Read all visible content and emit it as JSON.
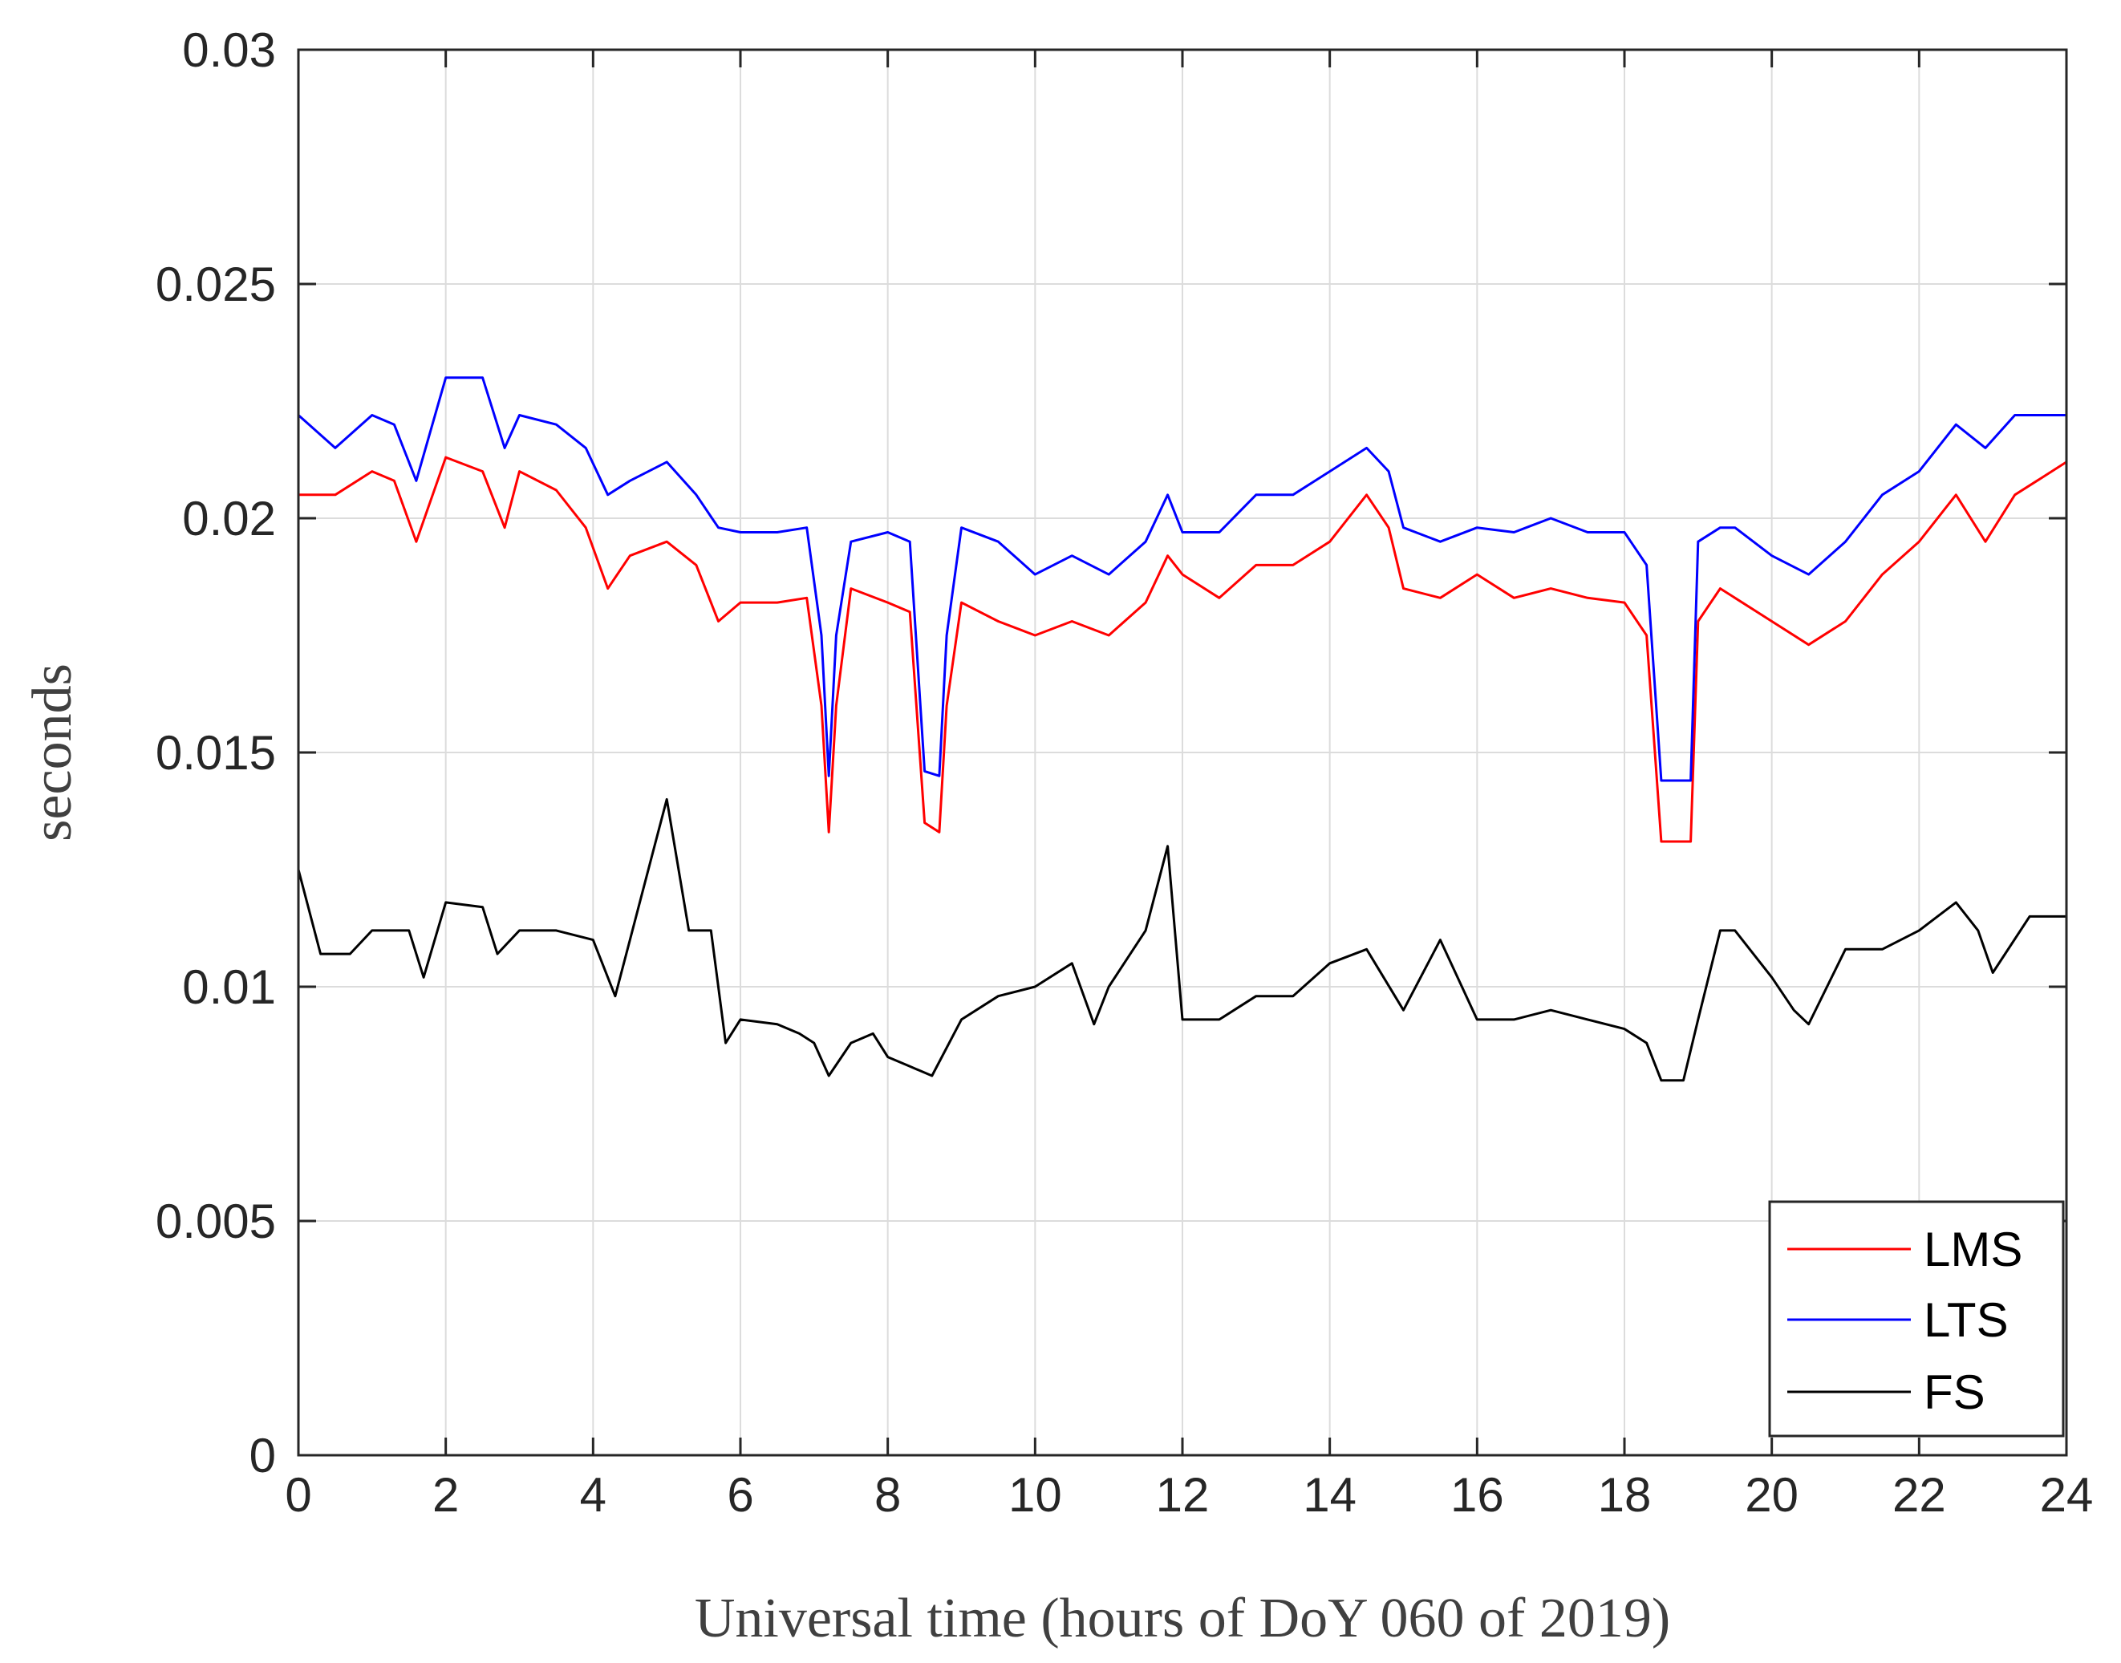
{
  "chart_data": {
    "type": "line",
    "title": "",
    "xlabel": "Universal time (hours of DoY 060 of 2019)",
    "ylabel": "seconds",
    "xlim": [
      0,
      24
    ],
    "ylim": [
      0,
      0.03
    ],
    "xticks": [
      0,
      2,
      4,
      6,
      8,
      10,
      12,
      14,
      16,
      18,
      20,
      22,
      24
    ],
    "xtick_labels": [
      "0",
      "2",
      "4",
      "6",
      "8",
      "10",
      "12",
      "14",
      "16",
      "18",
      "20",
      "22",
      "24"
    ],
    "yticks": [
      0,
      0.005,
      0.01,
      0.015,
      0.02,
      0.025,
      0.03
    ],
    "ytick_labels": [
      "0",
      "0.005",
      "0.01",
      "0.015",
      "0.02",
      "0.025",
      "0.03"
    ],
    "grid": true,
    "legend_position": "bottom-right",
    "series": [
      {
        "name": "LMS",
        "color": "#ff0000",
        "x": [
          0,
          0.5,
          1,
          1.3,
          1.6,
          2,
          2.5,
          2.8,
          3,
          3.5,
          3.9,
          4.2,
          4.5,
          5,
          5.4,
          5.7,
          6,
          6.5,
          6.9,
          7.1,
          7.2,
          7.3,
          7.5,
          8,
          8.3,
          8.5,
          8.7,
          8.8,
          9,
          9.5,
          10,
          10.5,
          11,
          11.5,
          11.8,
          12,
          12.5,
          13,
          13.5,
          14,
          14.5,
          14.8,
          15,
          15.5,
          16,
          16.5,
          17,
          17.5,
          18,
          18.3,
          18.5,
          18.9,
          19,
          19.3,
          19.5,
          20,
          20.5,
          21,
          21.5,
          22,
          22.5,
          22.9,
          23.3,
          23.6,
          24
        ],
        "values": [
          0.0205,
          0.0205,
          0.021,
          0.0208,
          0.0195,
          0.0213,
          0.021,
          0.0198,
          0.021,
          0.0206,
          0.0198,
          0.0185,
          0.0192,
          0.0195,
          0.019,
          0.0178,
          0.0182,
          0.0182,
          0.0183,
          0.016,
          0.0133,
          0.016,
          0.0185,
          0.0182,
          0.018,
          0.0135,
          0.0133,
          0.016,
          0.0182,
          0.0178,
          0.0175,
          0.0178,
          0.0175,
          0.0182,
          0.0192,
          0.0188,
          0.0183,
          0.019,
          0.019,
          0.0195,
          0.0205,
          0.0198,
          0.0185,
          0.0183,
          0.0188,
          0.0183,
          0.0185,
          0.0183,
          0.0182,
          0.0175,
          0.0131,
          0.0131,
          0.0178,
          0.0185,
          0.0183,
          0.0178,
          0.0173,
          0.0178,
          0.0188,
          0.0195,
          0.0205,
          0.0195,
          0.0205,
          0.0208,
          0.0212
        ]
      },
      {
        "name": "LTS",
        "color": "#0000ff",
        "x": [
          0,
          0.5,
          1,
          1.3,
          1.6,
          2,
          2.5,
          2.8,
          3,
          3.5,
          3.9,
          4.2,
          4.5,
          5,
          5.4,
          5.7,
          6,
          6.5,
          6.9,
          7.1,
          7.2,
          7.3,
          7.5,
          8,
          8.3,
          8.5,
          8.7,
          8.8,
          9,
          9.5,
          10,
          10.5,
          11,
          11.5,
          11.8,
          12,
          12.5,
          13,
          13.5,
          14,
          14.5,
          14.8,
          15,
          15.5,
          16,
          16.5,
          17,
          17.5,
          18,
          18.3,
          18.5,
          18.9,
          19,
          19.3,
          19.5,
          20,
          20.5,
          21,
          21.5,
          22,
          22.5,
          22.9,
          23.3,
          23.6,
          24
        ],
        "values": [
          0.0222,
          0.0215,
          0.0222,
          0.022,
          0.0208,
          0.023,
          0.023,
          0.0215,
          0.0222,
          0.022,
          0.0215,
          0.0205,
          0.0208,
          0.0212,
          0.0205,
          0.0198,
          0.0197,
          0.0197,
          0.0198,
          0.0175,
          0.0145,
          0.0175,
          0.0195,
          0.0197,
          0.0195,
          0.0146,
          0.0145,
          0.0175,
          0.0198,
          0.0195,
          0.0188,
          0.0192,
          0.0188,
          0.0195,
          0.0205,
          0.0197,
          0.0197,
          0.0205,
          0.0205,
          0.021,
          0.0215,
          0.021,
          0.0198,
          0.0195,
          0.0198,
          0.0197,
          0.02,
          0.0197,
          0.0197,
          0.019,
          0.0144,
          0.0144,
          0.0195,
          0.0198,
          0.0198,
          0.0192,
          0.0188,
          0.0195,
          0.0205,
          0.021,
          0.022,
          0.0215,
          0.0222,
          0.0222,
          0.0222
        ]
      },
      {
        "name": "FS",
        "color": "#000000",
        "x": [
          0,
          0.3,
          0.7,
          1,
          1.5,
          1.7,
          2,
          2.5,
          2.7,
          3,
          3.5,
          4,
          4.3,
          4.5,
          4.8,
          5,
          5.3,
          5.6,
          5.8,
          6,
          6.5,
          6.8,
          7,
          7.2,
          7.5,
          7.8,
          8,
          8.3,
          8.6,
          9,
          9.5,
          10,
          10.5,
          10.8,
          11,
          11.5,
          11.8,
          12,
          12.5,
          13,
          13.5,
          14,
          14.5,
          15,
          15.5,
          16,
          16.5,
          17,
          17.5,
          18,
          18.3,
          18.5,
          18.8,
          19,
          19.3,
          19.5,
          20,
          20.3,
          20.5,
          21,
          21.5,
          22,
          22.5,
          22.8,
          23,
          23.5,
          24
        ],
        "values": [
          0.0125,
          0.0107,
          0.0107,
          0.0112,
          0.0112,
          0.0102,
          0.0118,
          0.0117,
          0.0107,
          0.0112,
          0.0112,
          0.011,
          0.0098,
          0.011,
          0.0128,
          0.014,
          0.0112,
          0.0112,
          0.0088,
          0.0093,
          0.0092,
          0.009,
          0.0088,
          0.0081,
          0.0088,
          0.009,
          0.0085,
          0.0083,
          0.0081,
          0.0093,
          0.0098,
          0.01,
          0.0105,
          0.0092,
          0.01,
          0.0112,
          0.013,
          0.0093,
          0.0093,
          0.0098,
          0.0098,
          0.0105,
          0.0108,
          0.0095,
          0.011,
          0.0093,
          0.0093,
          0.0095,
          0.0093,
          0.0091,
          0.0088,
          0.008,
          0.008,
          0.0093,
          0.0112,
          0.0112,
          0.0102,
          0.0095,
          0.0092,
          0.0108,
          0.0108,
          0.0112,
          0.0118,
          0.0112,
          0.0103,
          0.0115,
          0.0115
        ]
      }
    ]
  }
}
